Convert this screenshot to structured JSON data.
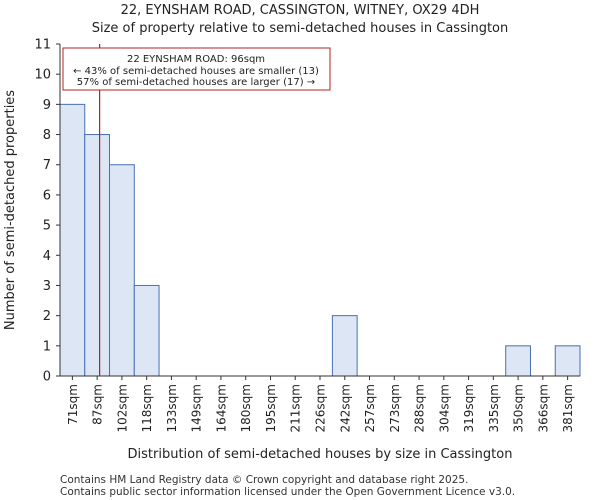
{
  "chart_data": {
    "type": "bar",
    "title": "22, EYNSHAM ROAD, CASSINGTON, WITNEY, OX29 4DH",
    "subtitle": "Size of property relative to semi-detached houses in Cassington",
    "xlabel": "Distribution of semi-detached houses by size in Cassington",
    "ylabel": "Number of semi-detached properties",
    "ylim": [
      0,
      11
    ],
    "yticks": [
      0,
      1,
      2,
      3,
      4,
      5,
      6,
      7,
      8,
      9,
      10,
      11
    ],
    "grid": false,
    "bin_edges": [
      "71sqm",
      "87sqm",
      "102sqm",
      "118sqm",
      "133sqm",
      "149sqm",
      "164sqm",
      "180sqm",
      "195sqm",
      "211sqm",
      "226sqm",
      "242sqm",
      "257sqm",
      "273sqm",
      "288sqm",
      "304sqm",
      "319sqm",
      "335sqm",
      "350sqm",
      "366sqm",
      "381sqm"
    ],
    "values": [
      9,
      8,
      7,
      3,
      0,
      0,
      0,
      0,
      0,
      0,
      0,
      2,
      0,
      0,
      0,
      0,
      0,
      0,
      1,
      0,
      1
    ],
    "bar_color": "#dce6f5",
    "bar_edge_color": "#4a6fb5",
    "marker": {
      "value": 96,
      "x_bin_fraction": 1.6,
      "color": "#b22222",
      "annotation": [
        "22 EYNSHAM ROAD: 96sqm",
        "← 43% of semi-detached houses are smaller (13)",
        "57% of semi-detached houses are larger (17) →"
      ]
    }
  },
  "footer": {
    "line1": "Contains HM Land Registry data © Crown copyright and database right 2025.",
    "line2": "Contains public sector information licensed under the Open Government Licence v3.0."
  }
}
